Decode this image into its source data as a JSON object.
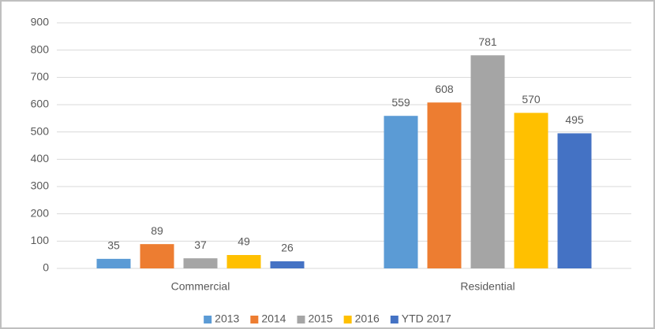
{
  "chart_data": {
    "type": "bar",
    "categories": [
      "Commercial",
      "Residential"
    ],
    "series": [
      {
        "name": "2013",
        "color": "#5b9bd5",
        "values": [
          35,
          559
        ]
      },
      {
        "name": "2014",
        "color": "#ed7d31",
        "values": [
          89,
          608
        ]
      },
      {
        "name": "2015",
        "color": "#a5a5a5",
        "values": [
          37,
          781
        ]
      },
      {
        "name": "2016",
        "color": "#ffc000",
        "values": [
          49,
          570
        ]
      },
      {
        "name": "YTD 2017",
        "color": "#4472c4",
        "values": [
          26,
          495
        ]
      }
    ],
    "ylim": [
      0,
      900
    ],
    "yticks": [
      0,
      100,
      200,
      300,
      400,
      500,
      600,
      700,
      800,
      900
    ],
    "grid": true,
    "legend": "bottom"
  }
}
